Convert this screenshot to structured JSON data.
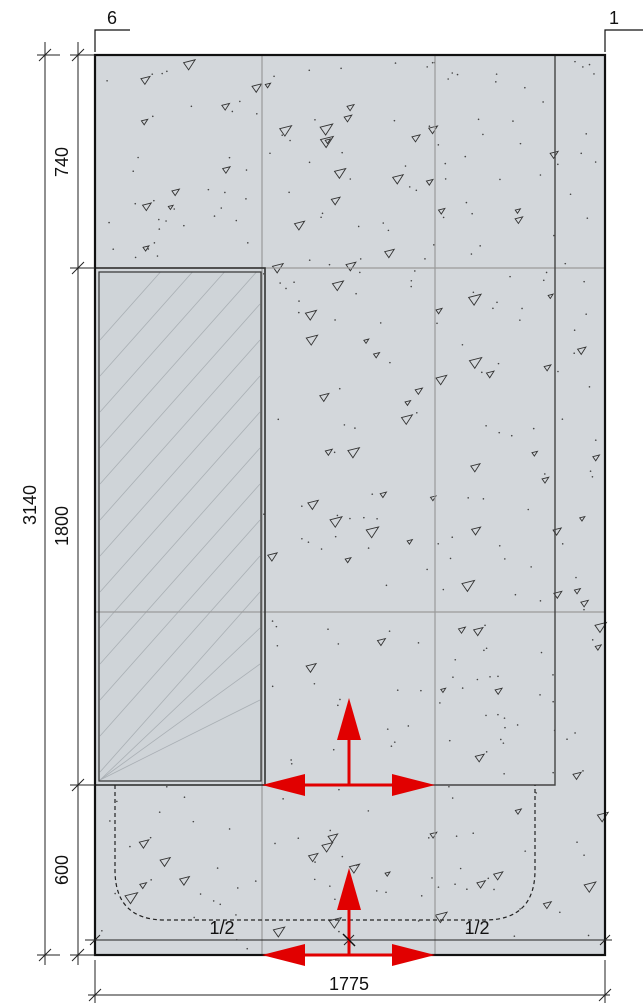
{
  "labels": {
    "axis_left": "6",
    "axis_right": "1"
  },
  "dimensions": {
    "top_band": "740",
    "middle_band": "1800",
    "bottom_band": "600",
    "total_height": "3140",
    "total_width": "1775",
    "half_left": "1/2",
    "half_right": "1/2"
  }
}
